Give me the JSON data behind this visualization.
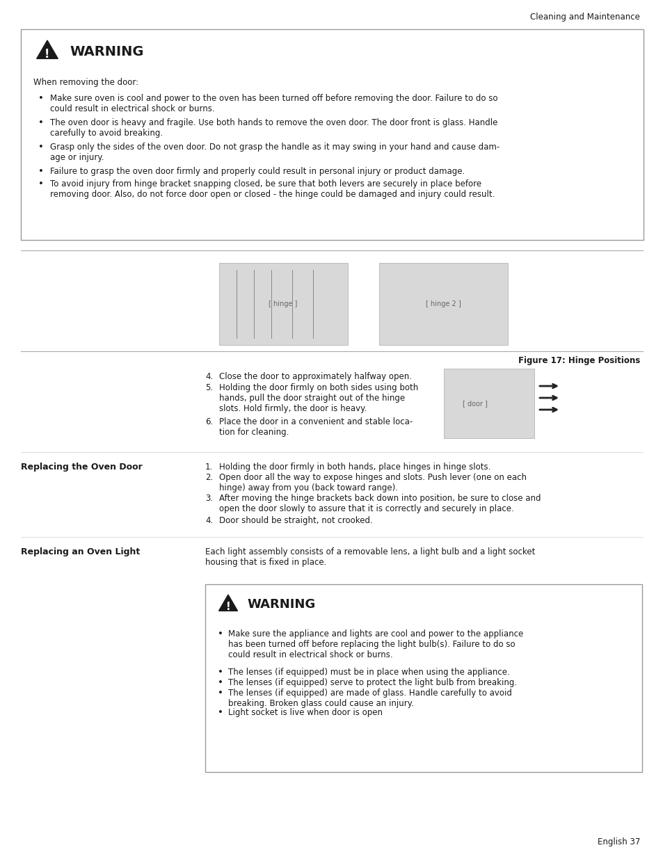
{
  "header_text": "Cleaning and Maintenance",
  "footer_text": "English 37",
  "warning1_title": "WARNING",
  "warning1_intro": "When removing the door:",
  "warning1_bullets": [
    "Make sure oven is cool and power to the oven has been turned off before removing the door. Failure to do so\ncould result in electrical shock or burns.",
    "The oven door is heavy and fragile. Use both hands to remove the oven door. The door front is glass. Handle\ncarefully to avoid breaking.",
    "Grasp only the sides of the oven door. Do not grasp the handle as it may swing in your hand and cause dam-\nage or injury.",
    "Failure to grasp the oven door firmly and properly could result in personal injury or product damage.",
    "To avoid injury from hinge bracket snapping closed, be sure that both levers are securely in place before\nremoving door. Also, do not force door open or closed - the hinge could be damaged and injury could result."
  ],
  "figure_caption": "Figure 17: Hinge Positions",
  "steps_4to6_numbers": [
    "4.",
    "5.",
    "6."
  ],
  "steps_4to6": [
    "Close the door to approximately halfway open.",
    "Holding the door firmly on both sides using both\nhands, pull the door straight out of the hinge\nslots. Hold firmly, the door is heavy.",
    "Place the door in a convenient and stable loca-\ntion for cleaning."
  ],
  "section1_title": "Replacing the Oven Door",
  "section1_numbers": [
    "1.",
    "2.",
    "3.",
    "4."
  ],
  "section1_steps": [
    "Holding the door firmly in both hands, place hinges in hinge slots.",
    "Open door all the way to expose hinges and slots. Push lever (one on each\nhinge) away from you (back toward range).",
    "After moving the hinge brackets back down into position, be sure to close and\nopen the door slowly to assure that it is correctly and securely in place.",
    "Door should be straight, not crooked."
  ],
  "section2_title": "Replacing an Oven Light",
  "section2_text": "Each light assembly consists of a removable lens, a light bulb and a light socket\nhousing that is fixed in place.",
  "warning2_title": "WARNING",
  "warning2_bullets": [
    "Make sure the appliance and lights are cool and power to the appliance\nhas been turned off before replacing the light bulb(s). Failure to do so\ncould result in electrical shock or burns.",
    "The lenses (if equipped) must be in place when using the appliance.",
    "The lenses (if equipped) serve to protect the light bulb from breaking.",
    "The lenses (if equipped) are made of glass. Handle carefully to avoid\nbreaking. Broken glass could cause an injury.",
    "Light socket is live when door is open"
  ],
  "bg_color": "#ffffff",
  "box_border_color": "#999999",
  "text_color": "#1a1a1a",
  "fs_body": 8.5,
  "fs_warning_title": 13,
  "fs_header": 8.5,
  "fs_section_title": 9.0
}
